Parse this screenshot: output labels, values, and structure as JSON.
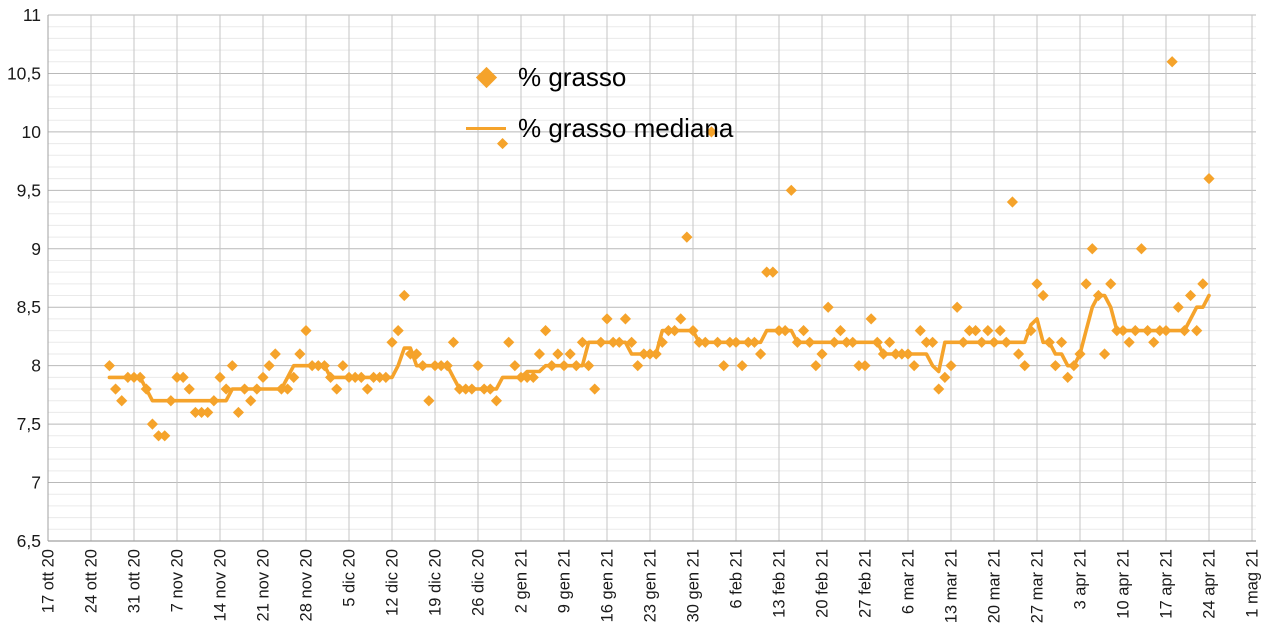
{
  "chart_data": {
    "type": "scatter",
    "title": "",
    "accent_color": "#F5A32B",
    "legend": {
      "position": "top-center",
      "entries": [
        {
          "label": "% grasso",
          "marker": "diamond"
        },
        {
          "label": "% grasso mediana",
          "marker": "line"
        }
      ]
    },
    "x_axis": {
      "tick_labels": [
        "17 ott 20",
        "24 ott 20",
        "31 ott 20",
        "7 nov 20",
        "14 nov 20",
        "21 nov 20",
        "28 nov 20",
        "5 dic 20",
        "12 dic 20",
        "19 dic 20",
        "26 dic 20",
        "2 gen 21",
        "9 gen 21",
        "16 gen 21",
        "23 gen 21",
        "30 gen 21",
        "6 feb 21",
        "13 feb 21",
        "20 feb 21",
        "27 feb 21",
        "6 mar 21",
        "13 mar 21",
        "20 mar 21",
        "27 mar 21",
        "3 apr 21",
        "10 apr 21",
        "17 apr 21",
        "24 apr 21",
        "1 mag 21"
      ],
      "tick_interval_days": 7,
      "total_days": 196
    },
    "y_axis": {
      "min": 6.5,
      "max": 11,
      "major_step": 0.5,
      "minor_step": 0.1,
      "tick_labels": [
        "6,5",
        "7",
        "7,5",
        "8",
        "8,5",
        "9",
        "9,5",
        "10",
        "10,5",
        "11"
      ]
    },
    "grid": {
      "minor_color": "#eaeaea",
      "major_color": "#b9b9b9",
      "vertical_color": "#c6c6c6",
      "axis_color": "#a0a0a0"
    },
    "series": [
      {
        "name": "% grasso",
        "kind": "points",
        "marker": "diamond",
        "color": "#F5A32B",
        "start_day": 10,
        "values": [
          8.0,
          7.8,
          7.7,
          7.9,
          7.9,
          7.9,
          7.8,
          7.5,
          7.4,
          7.4,
          7.7,
          7.9,
          7.9,
          7.8,
          7.6,
          7.6,
          7.6,
          7.7,
          7.9,
          7.8,
          8.0,
          7.6,
          7.8,
          7.7,
          7.8,
          7.9,
          8.0,
          8.1,
          7.8,
          7.8,
          7.9,
          8.1,
          8.3,
          8.0,
          8.0,
          8.0,
          7.9,
          7.8,
          8.0,
          7.9,
          7.9,
          7.9,
          7.8,
          7.9,
          7.9,
          7.9,
          8.2,
          8.3,
          8.6,
          8.1,
          8.1,
          8.0,
          7.7,
          8.0,
          8.0,
          8.0,
          8.2,
          7.8,
          7.8,
          7.8,
          8.0,
          7.8,
          7.8,
          7.7,
          9.9,
          8.2,
          8.0,
          7.9,
          7.9,
          7.9,
          8.1,
          8.3,
          8.0,
          8.1,
          8.0,
          8.1,
          8.0,
          8.2,
          8.0,
          7.8,
          8.2,
          8.4,
          8.2,
          8.2,
          8.4,
          8.2,
          8.0,
          8.1,
          8.1,
          8.1,
          8.2,
          8.3,
          8.3,
          8.4,
          9.1,
          8.3,
          8.2,
          8.2,
          10.0,
          8.2,
          8.0,
          8.2,
          8.2,
          8.0,
          8.2,
          8.2,
          8.1,
          8.8,
          8.8,
          8.3,
          8.3,
          9.5,
          8.2,
          8.3,
          8.2,
          8.0,
          8.1,
          8.5,
          8.2,
          8.3,
          8.2,
          8.2,
          8.0,
          8.0,
          8.4,
          8.2,
          8.1,
          8.2,
          8.1,
          8.1,
          8.1,
          8.0,
          8.3,
          8.2,
          8.2,
          7.8,
          7.9,
          8.0,
          8.5,
          8.2,
          8.3,
          8.3,
          8.2,
          8.3,
          8.2,
          8.3,
          8.2,
          9.4,
          8.1,
          8.0,
          8.3,
          8.7,
          8.6,
          8.2,
          8.0,
          8.2,
          7.9,
          8.0,
          8.1,
          8.7,
          9.0,
          8.6,
          8.1,
          8.7,
          8.3,
          8.3,
          8.2,
          8.3,
          9.0,
          8.3,
          8.2,
          8.3,
          8.3,
          10.6,
          8.5,
          8.3,
          8.6,
          8.3,
          8.7,
          9.6
        ]
      },
      {
        "name": "% grasso mediana",
        "kind": "line",
        "color": "#F5A32B",
        "start_day": 10,
        "values": [
          7.9,
          7.9,
          7.9,
          7.9,
          7.9,
          7.9,
          7.8,
          7.7,
          7.7,
          7.7,
          7.7,
          7.7,
          7.7,
          7.7,
          7.7,
          7.7,
          7.7,
          7.7,
          7.7,
          7.7,
          7.8,
          7.8,
          7.8,
          7.8,
          7.8,
          7.8,
          7.8,
          7.8,
          7.8,
          7.9,
          8.0,
          8.0,
          8.0,
          8.0,
          8.0,
          8.0,
          7.9,
          7.9,
          7.9,
          7.9,
          7.9,
          7.9,
          7.9,
          7.9,
          7.9,
          7.9,
          7.9,
          8.0,
          8.15,
          8.15,
          8.0,
          8.0,
          8.0,
          8.0,
          8.0,
          8.0,
          7.9,
          7.8,
          7.8,
          7.8,
          7.8,
          7.8,
          7.8,
          7.8,
          7.9,
          7.9,
          7.9,
          7.9,
          7.95,
          7.95,
          7.95,
          8.0,
          8.0,
          8.0,
          8.0,
          8.0,
          8.0,
          8.0,
          8.2,
          8.2,
          8.2,
          8.2,
          8.2,
          8.2,
          8.2,
          8.1,
          8.1,
          8.1,
          8.1,
          8.1,
          8.3,
          8.3,
          8.3,
          8.3,
          8.3,
          8.3,
          8.2,
          8.2,
          8.2,
          8.2,
          8.2,
          8.2,
          8.2,
          8.2,
          8.2,
          8.2,
          8.2,
          8.3,
          8.3,
          8.3,
          8.3,
          8.3,
          8.2,
          8.2,
          8.2,
          8.2,
          8.2,
          8.2,
          8.2,
          8.2,
          8.2,
          8.2,
          8.2,
          8.2,
          8.2,
          8.2,
          8.1,
          8.1,
          8.1,
          8.1,
          8.1,
          8.1,
          8.1,
          8.1,
          8.0,
          7.95,
          8.2,
          8.2,
          8.2,
          8.2,
          8.2,
          8.2,
          8.2,
          8.2,
          8.2,
          8.2,
          8.2,
          8.2,
          8.2,
          8.2,
          8.35,
          8.4,
          8.2,
          8.2,
          8.1,
          8.1,
          8.0,
          8.0,
          8.1,
          8.3,
          8.5,
          8.6,
          8.6,
          8.5,
          8.3,
          8.3,
          8.3,
          8.3,
          8.3,
          8.3,
          8.3,
          8.3,
          8.3,
          8.3,
          8.3,
          8.3,
          8.4,
          8.5,
          8.5,
          8.6
        ]
      }
    ]
  }
}
